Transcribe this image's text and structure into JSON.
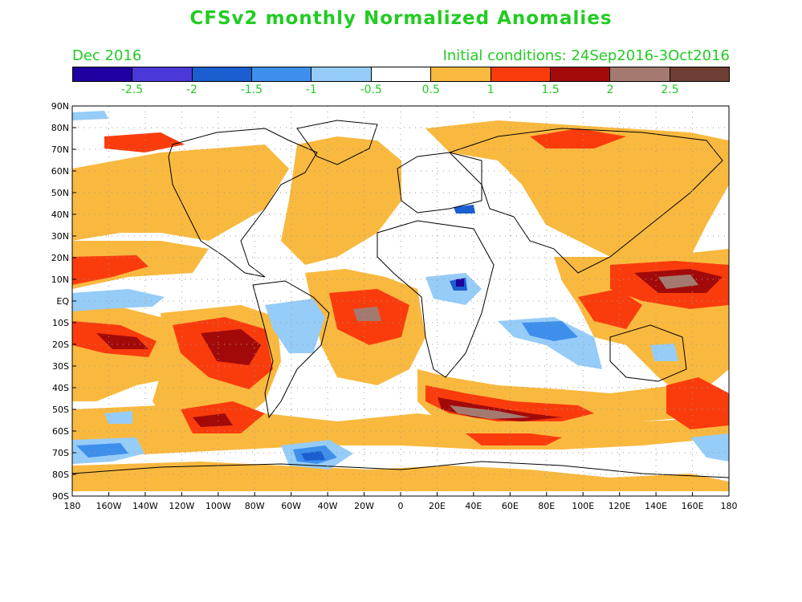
{
  "title": "CFSv2 monthly Normalized Anomalies",
  "valid_month": "Dec 2016",
  "initial_conditions": "Initial conditions: 24Sep2016-3Oct2016",
  "colorbar": {
    "colors": [
      "#2000a0",
      "#4a38d8",
      "#1a5ed0",
      "#3e8fec",
      "#96ccf8",
      "#ffffff",
      "#f9b93f",
      "#fa3c0c",
      "#a20a0a",
      "#a47a70",
      "#6e3e34"
    ],
    "labels": [
      "-2.5",
      "-2",
      "-1.5",
      "-1",
      "-0.5",
      "0.5",
      "1",
      "1.5",
      "2",
      "2.5"
    ]
  },
  "map": {
    "lat_labels": [
      "90N",
      "80N",
      "70N",
      "60N",
      "50N",
      "40N",
      "30N",
      "20N",
      "10N",
      "EQ",
      "10S",
      "20S",
      "30S",
      "40S",
      "50S",
      "60S",
      "70S",
      "80S",
      "90S"
    ],
    "lon_labels": [
      "180",
      "160W",
      "140W",
      "120W",
      "100W",
      "80W",
      "60W",
      "40W",
      "20W",
      "0",
      "20E",
      "40E",
      "60E",
      "80E",
      "100E",
      "120E",
      "140E",
      "160E",
      "180"
    ]
  }
}
